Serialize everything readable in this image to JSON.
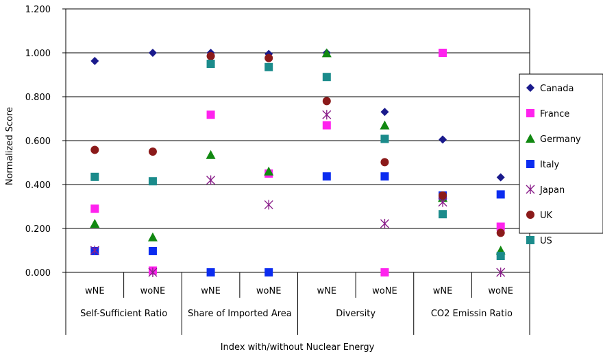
{
  "chart_data": {
    "type": "scatter",
    "title": "",
    "xlabel": "Index with/without Nuclear Energy",
    "ylabel": "Normalized Score",
    "ylim": [
      0,
      1.2
    ],
    "yticks": [
      "0.000",
      "0.200",
      "0.400",
      "0.600",
      "0.800",
      "1.000",
      "1.200"
    ],
    "grid": true,
    "legend_position": "right",
    "categories": [
      {
        "group": "Self-Sufficient Ratio",
        "subs": [
          "wNE",
          "woNE"
        ]
      },
      {
        "group": "Share of Imported Area",
        "subs": [
          "wNE",
          "woNE"
        ]
      },
      {
        "group": "Diversity",
        "subs": [
          "wNE",
          "woNE"
        ]
      },
      {
        "group": "CO2 Emissin Ratio",
        "subs": [
          "wNE",
          "woNE"
        ]
      }
    ],
    "series": [
      {
        "name": "Canada",
        "marker": "diamond",
        "color": "#1a1a8c",
        "values": [
          0.963,
          1.0,
          1.0,
          0.995,
          1.0,
          0.731,
          0.605,
          0.433
        ]
      },
      {
        "name": "France",
        "marker": "square",
        "color": "#ff22ee",
        "values": [
          0.29,
          0.008,
          0.718,
          0.45,
          0.67,
          0.0,
          1.0,
          0.208
        ]
      },
      {
        "name": "Germany",
        "marker": "triangle",
        "color": "#118811",
        "values": [
          0.222,
          0.16,
          0.535,
          0.46,
          0.999,
          0.67,
          0.34,
          0.1
        ]
      },
      {
        "name": "Italy",
        "marker": "square",
        "color": "#0b2cf0",
        "values": [
          0.097,
          0.097,
          0.0,
          0.0,
          0.437,
          0.437,
          0.35,
          0.355
        ]
      },
      {
        "name": "Japan",
        "marker": "star",
        "color": "#8a1f8a",
        "values": [
          0.1,
          0.0,
          0.42,
          0.308,
          0.718,
          0.222,
          0.32,
          0.0
        ]
      },
      {
        "name": "UK",
        "marker": "circle",
        "color": "#8b1a1a",
        "values": [
          0.558,
          0.55,
          0.985,
          0.976,
          0.78,
          0.502,
          0.35,
          0.18
        ]
      },
      {
        "name": "US",
        "marker": "square",
        "color": "#1b8b8b",
        "values": [
          0.435,
          0.415,
          0.95,
          0.935,
          0.89,
          0.608,
          0.265,
          0.075
        ]
      }
    ]
  }
}
